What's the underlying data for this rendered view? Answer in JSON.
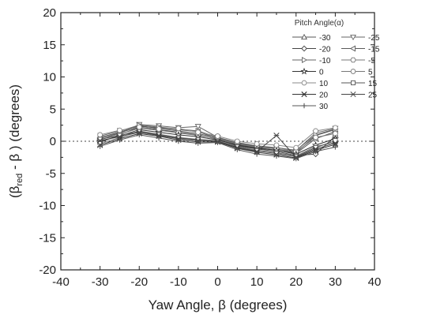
{
  "chart_data": {
    "type": "line",
    "xlabel": "Yaw Angle, β (degrees)",
    "ylabel_parts": [
      "(β",
      "red",
      " - β ) (degrees)"
    ],
    "xlim": [
      -40,
      40
    ],
    "ylim": [
      -20,
      20
    ],
    "xticks": [
      -40,
      -30,
      -20,
      -10,
      0,
      10,
      20,
      30,
      40
    ],
    "yticks": [
      -20,
      -15,
      -10,
      -5,
      0,
      5,
      10,
      15,
      20
    ],
    "xtick_labels": [
      "-40",
      "-30",
      "-20",
      "-10",
      "0",
      "10",
      "20",
      "30",
      "40"
    ],
    "ytick_labels": [
      "-20",
      "-15",
      "-10",
      "-5",
      "0",
      "5",
      "10",
      "15",
      "20"
    ],
    "reference_line_y": 0,
    "legend": {
      "title": "Pitch Angle(α)",
      "placement": "top-right",
      "columns": 2
    },
    "x": [
      -30,
      -25,
      -20,
      -15,
      -10,
      -5,
      0,
      5,
      10,
      15,
      20,
      25,
      30
    ],
    "series": [
      {
        "name": "-30",
        "marker": "triangle-up",
        "color": "#555555",
        "values": [
          0.6,
          1.4,
          2.4,
          2.0,
          1.6,
          1.2,
          0.5,
          -0.3,
          -0.8,
          -1.2,
          -1.8,
          0.9,
          1.8
        ]
      },
      {
        "name": "-25",
        "marker": "triangle-down",
        "color": "#666666",
        "values": [
          0.2,
          1.2,
          2.6,
          2.4,
          2.1,
          2.3,
          0.6,
          -0.4,
          -0.9,
          -1.0,
          -1.5,
          1.3,
          2.0
        ]
      },
      {
        "name": "-20",
        "marker": "diamond",
        "color": "#444444",
        "values": [
          -0.2,
          1.0,
          2.2,
          1.8,
          1.4,
          1.0,
          0.3,
          -0.7,
          -1.2,
          -1.6,
          -2.2,
          -2.0,
          0.8
        ]
      },
      {
        "name": "-15",
        "marker": "triangle-left",
        "color": "#5a5a5a",
        "values": [
          0.4,
          1.3,
          2.3,
          2.1,
          1.8,
          1.5,
          0.4,
          -0.5,
          -1.0,
          -1.4,
          -1.9,
          0.4,
          1.5
        ]
      },
      {
        "name": "-10",
        "marker": "triangle-right",
        "color": "#666666",
        "values": [
          0.8,
          1.6,
          2.5,
          2.2,
          1.9,
          1.6,
          0.6,
          -0.2,
          -0.7,
          -1.0,
          -1.4,
          1.0,
          1.9
        ]
      },
      {
        "name": "-5",
        "marker": "hexagon",
        "color": "#777777",
        "values": [
          0.5,
          1.1,
          2.0,
          1.7,
          1.3,
          0.9,
          0.4,
          -0.4,
          -0.9,
          -1.2,
          -1.6,
          0.6,
          1.2
        ]
      },
      {
        "name": "0",
        "marker": "star",
        "color": "#333333",
        "values": [
          0.0,
          0.8,
          1.8,
          1.4,
          1.0,
          0.7,
          0.2,
          -0.6,
          -1.1,
          -1.4,
          -2.0,
          -0.6,
          0.4
        ]
      },
      {
        "name": "5",
        "marker": "circle",
        "color": "#777777",
        "values": [
          -0.4,
          0.6,
          1.6,
          1.1,
          0.6,
          0.3,
          0.1,
          -0.8,
          -1.4,
          -1.8,
          -2.3,
          -0.8,
          -0.2
        ]
      },
      {
        "name": "10",
        "marker": "circle",
        "color": "#888888",
        "values": [
          1.0,
          1.7,
          2.2,
          1.9,
          2.0,
          1.4,
          0.8,
          0.0,
          -0.4,
          -0.6,
          -1.0,
          1.6,
          2.1
        ]
      },
      {
        "name": "15",
        "marker": "square",
        "color": "#555555",
        "values": [
          0.3,
          0.9,
          1.5,
          1.0,
          0.5,
          0.2,
          0.0,
          -0.9,
          -1.5,
          -1.9,
          -2.4,
          -1.0,
          0.1
        ]
      },
      {
        "name": "20",
        "marker": "x",
        "color": "#333333",
        "values": [
          -0.6,
          0.4,
          1.2,
          0.8,
          0.2,
          -0.1,
          -0.1,
          -1.1,
          -1.7,
          -2.1,
          -2.6,
          -1.4,
          -0.5
        ]
      },
      {
        "name": "25",
        "marker": "asterisk",
        "color": "#444444",
        "values": [
          0.1,
          0.7,
          1.4,
          0.9,
          0.4,
          0.1,
          0.0,
          -1.0,
          -1.6,
          0.9,
          -2.5,
          -1.2,
          -0.3
        ]
      },
      {
        "name": "30",
        "marker": "plus",
        "color": "#555555",
        "values": [
          -0.8,
          0.2,
          1.0,
          0.5,
          0.0,
          -0.3,
          -0.2,
          -1.3,
          -2.0,
          -2.3,
          -2.7,
          -1.6,
          -0.9
        ]
      }
    ]
  }
}
